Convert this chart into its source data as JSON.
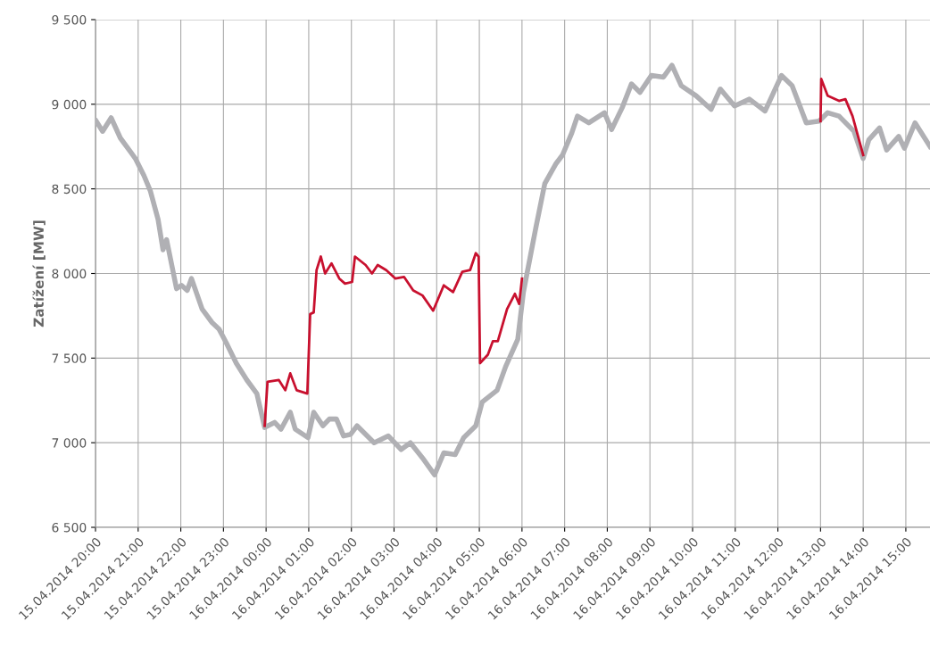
{
  "chart_data": {
    "type": "line",
    "ylabel": "Zatížení [MW]",
    "xlim": [
      "2014-04-15T20:00",
      "2014-04-16T15:34"
    ],
    "ylim": [
      6500,
      9500
    ],
    "xticks": [
      {
        "value": "2014-04-15T20:00",
        "label": "15.04.2014 20:00"
      },
      {
        "value": "2014-04-15T21:00",
        "label": "15.04.2014 21:00"
      },
      {
        "value": "2014-04-15T22:00",
        "label": "15.04.2014 22:00"
      },
      {
        "value": "2014-04-15T23:00",
        "label": "15.04.2014 23:00"
      },
      {
        "value": "2014-04-16T00:00",
        "label": "16.04.2014 00:00"
      },
      {
        "value": "2014-04-16T01:00",
        "label": "16.04.2014 01:00"
      },
      {
        "value": "2014-04-16T02:00",
        "label": "16.04.2014 02:00"
      },
      {
        "value": "2014-04-16T03:00",
        "label": "16.04.2014 03:00"
      },
      {
        "value": "2014-04-16T04:00",
        "label": "16.04.2014 04:00"
      },
      {
        "value": "2014-04-16T05:00",
        "label": "16.04.2014 05:00"
      },
      {
        "value": "2014-04-16T06:00",
        "label": "16.04.2014 06:00"
      },
      {
        "value": "2014-04-16T07:00",
        "label": "16.04.2014 07:00"
      },
      {
        "value": "2014-04-16T08:00",
        "label": "16.04.2014 08:00"
      },
      {
        "value": "2014-04-16T09:00",
        "label": "16.04.2014 09:00"
      },
      {
        "value": "2014-04-16T10:00",
        "label": "16.04.2014 10:00"
      },
      {
        "value": "2014-04-16T11:00",
        "label": "16.04.2014 11:00"
      },
      {
        "value": "2014-04-16T12:00",
        "label": "16.04.2014 12:00"
      },
      {
        "value": "2014-04-16T13:00",
        "label": "16.04.2014 13:00"
      },
      {
        "value": "2014-04-16T14:00",
        "label": "16.04.2014 14:00"
      },
      {
        "value": "2014-04-16T15:00",
        "label": "16.04.2014 15:00"
      }
    ],
    "yticks": [
      {
        "value": 6500,
        "label": "6 500"
      },
      {
        "value": 7000,
        "label": "7 000"
      },
      {
        "value": 7500,
        "label": "7 500"
      },
      {
        "value": 8000,
        "label": "8 000"
      },
      {
        "value": 8500,
        "label": "8 500"
      },
      {
        "value": 9000,
        "label": "9 000"
      },
      {
        "value": 9500,
        "label": "9 500"
      }
    ],
    "grid": true,
    "marker": "none",
    "line_style": "solid",
    "series": [
      {
        "color": "#b0b0b4",
        "x": [
          "2014-04-15T20:01",
          "2014-04-15T20:10",
          "2014-04-15T20:22",
          "2014-04-15T20:35",
          "2014-04-15T20:49",
          "2014-04-15T20:56",
          "2014-04-15T21:08",
          "2014-04-15T21:17",
          "2014-04-15T21:28",
          "2014-04-15T21:35",
          "2014-04-15T21:40",
          "2014-04-15T21:54",
          "2014-04-15T22:01",
          "2014-04-15T22:09",
          "2014-04-15T22:15",
          "2014-04-15T22:30",
          "2014-04-15T22:44",
          "2014-04-15T22:54",
          "2014-04-15T23:04",
          "2014-04-15T23:18",
          "2014-04-15T23:33",
          "2014-04-15T23:47",
          "2014-04-15T23:58",
          "2014-04-16T00:12",
          "2014-04-16T00:21",
          "2014-04-16T00:34",
          "2014-04-16T00:41",
          "2014-04-16T00:59",
          "2014-04-16T01:07",
          "2014-04-16T01:20",
          "2014-04-16T01:29",
          "2014-04-16T01:39",
          "2014-04-16T01:49",
          "2014-04-16T01:59",
          "2014-04-16T02:08",
          "2014-04-16T02:32",
          "2014-04-16T02:52",
          "2014-04-16T03:10",
          "2014-04-16T03:23",
          "2014-04-16T03:40",
          "2014-04-16T03:57",
          "2014-04-16T04:10",
          "2014-04-16T04:26",
          "2014-04-16T04:38",
          "2014-04-16T04:55",
          "2014-04-16T05:04",
          "2014-04-16T05:25",
          "2014-04-16T05:37",
          "2014-04-16T05:54",
          "2014-04-16T06:02",
          "2014-04-16T06:19",
          "2014-04-16T06:32",
          "2014-04-16T06:48",
          "2014-04-16T06:57",
          "2014-04-16T07:10",
          "2014-04-16T07:18",
          "2014-04-16T07:34",
          "2014-04-16T07:56",
          "2014-04-16T08:06",
          "2014-04-16T08:21",
          "2014-04-16T08:34",
          "2014-04-16T08:46",
          "2014-04-16T09:02",
          "2014-04-16T09:19",
          "2014-04-16T09:31",
          "2014-04-16T09:44",
          "2014-04-16T10:05",
          "2014-04-16T10:26",
          "2014-04-16T10:39",
          "2014-04-16T10:59",
          "2014-04-16T11:20",
          "2014-04-16T11:42",
          "2014-04-16T12:05",
          "2014-04-16T12:20",
          "2014-04-16T12:40",
          "2014-04-16T12:58",
          "2014-04-16T13:10",
          "2014-04-16T13:26",
          "2014-04-16T13:47",
          "2014-04-16T14:00",
          "2014-04-16T14:08",
          "2014-04-16T14:23",
          "2014-04-16T14:33",
          "2014-04-16T14:50",
          "2014-04-16T14:58",
          "2014-04-16T15:13",
          "2014-04-16T15:34"
        ],
        "values": [
          8900,
          8840,
          8920,
          8800,
          8720,
          8680,
          8580,
          8490,
          8320,
          8140,
          8200,
          7910,
          7930,
          7900,
          7970,
          7790,
          7710,
          7670,
          7590,
          7470,
          7370,
          7290,
          7090,
          7120,
          7080,
          7180,
          7080,
          7030,
          7180,
          7100,
          7140,
          7140,
          7040,
          7050,
          7100,
          7000,
          7040,
          6960,
          7000,
          6910,
          6810,
          6940,
          6930,
          7030,
          7100,
          7240,
          7310,
          7450,
          7610,
          7890,
          8260,
          8530,
          8650,
          8700,
          8830,
          8930,
          8890,
          8950,
          8850,
          8980,
          9120,
          9070,
          9170,
          9160,
          9230,
          9110,
          9050,
          8970,
          9090,
          8990,
          9030,
          8960,
          9170,
          9110,
          8890,
          8900,
          8950,
          8930,
          8840,
          8680,
          8790,
          8860,
          8730,
          8810,
          8740,
          8890,
          8750
        ]
      },
      {
        "color": "#c8102e",
        "x": [
          "2014-04-15T23:58",
          "2014-04-16T00:02",
          "2014-04-16T00:18",
          "2014-04-16T00:27",
          "2014-04-16T00:34",
          "2014-04-16T00:43",
          "2014-04-16T00:58",
          "2014-04-16T01:02",
          "2014-04-16T01:07",
          "2014-04-16T01:11",
          "2014-04-16T01:17",
          "2014-04-16T01:23",
          "2014-04-16T01:32",
          "2014-04-16T01:43",
          "2014-04-16T01:51",
          "2014-04-16T02:01",
          "2014-04-16T02:05",
          "2014-04-16T02:20",
          "2014-04-16T02:29",
          "2014-04-16T02:37",
          "2014-04-16T02:49",
          "2014-04-16T03:02",
          "2014-04-16T03:14",
          "2014-04-16T03:27",
          "2014-04-16T03:40",
          "2014-04-16T03:55",
          "2014-04-16T04:10",
          "2014-04-16T04:23",
          "2014-04-16T04:36",
          "2014-04-16T04:47",
          "2014-04-16T04:55",
          "2014-04-16T04:59",
          "2014-04-16T05:01",
          "2014-04-16T05:12",
          "2014-04-16T05:19",
          "2014-04-16T05:26",
          "2014-04-16T05:39",
          "2014-04-16T05:50",
          "2014-04-16T05:56",
          "2014-04-16T06:00"
        ],
        "values": [
          7100,
          7360,
          7370,
          7310,
          7410,
          7310,
          7290,
          7760,
          7770,
          8020,
          8100,
          8000,
          8060,
          7970,
          7940,
          7950,
          8100,
          8050,
          8000,
          8050,
          8020,
          7970,
          7980,
          7900,
          7870,
          7780,
          7930,
          7890,
          8010,
          8020,
          8120,
          8100,
          7470,
          7520,
          7600,
          7600,
          7790,
          7880,
          7820,
          7970
        ]
      },
      {
        "color": "#c8102e",
        "x": [
          "2014-04-16T13:00",
          "2014-04-16T13:01",
          "2014-04-16T13:10",
          "2014-04-16T13:26",
          "2014-04-16T13:35",
          "2014-04-16T13:45",
          "2014-04-16T14:00"
        ],
        "values": [
          8900,
          9150,
          9050,
          9020,
          9030,
          8930,
          8700
        ]
      }
    ]
  }
}
